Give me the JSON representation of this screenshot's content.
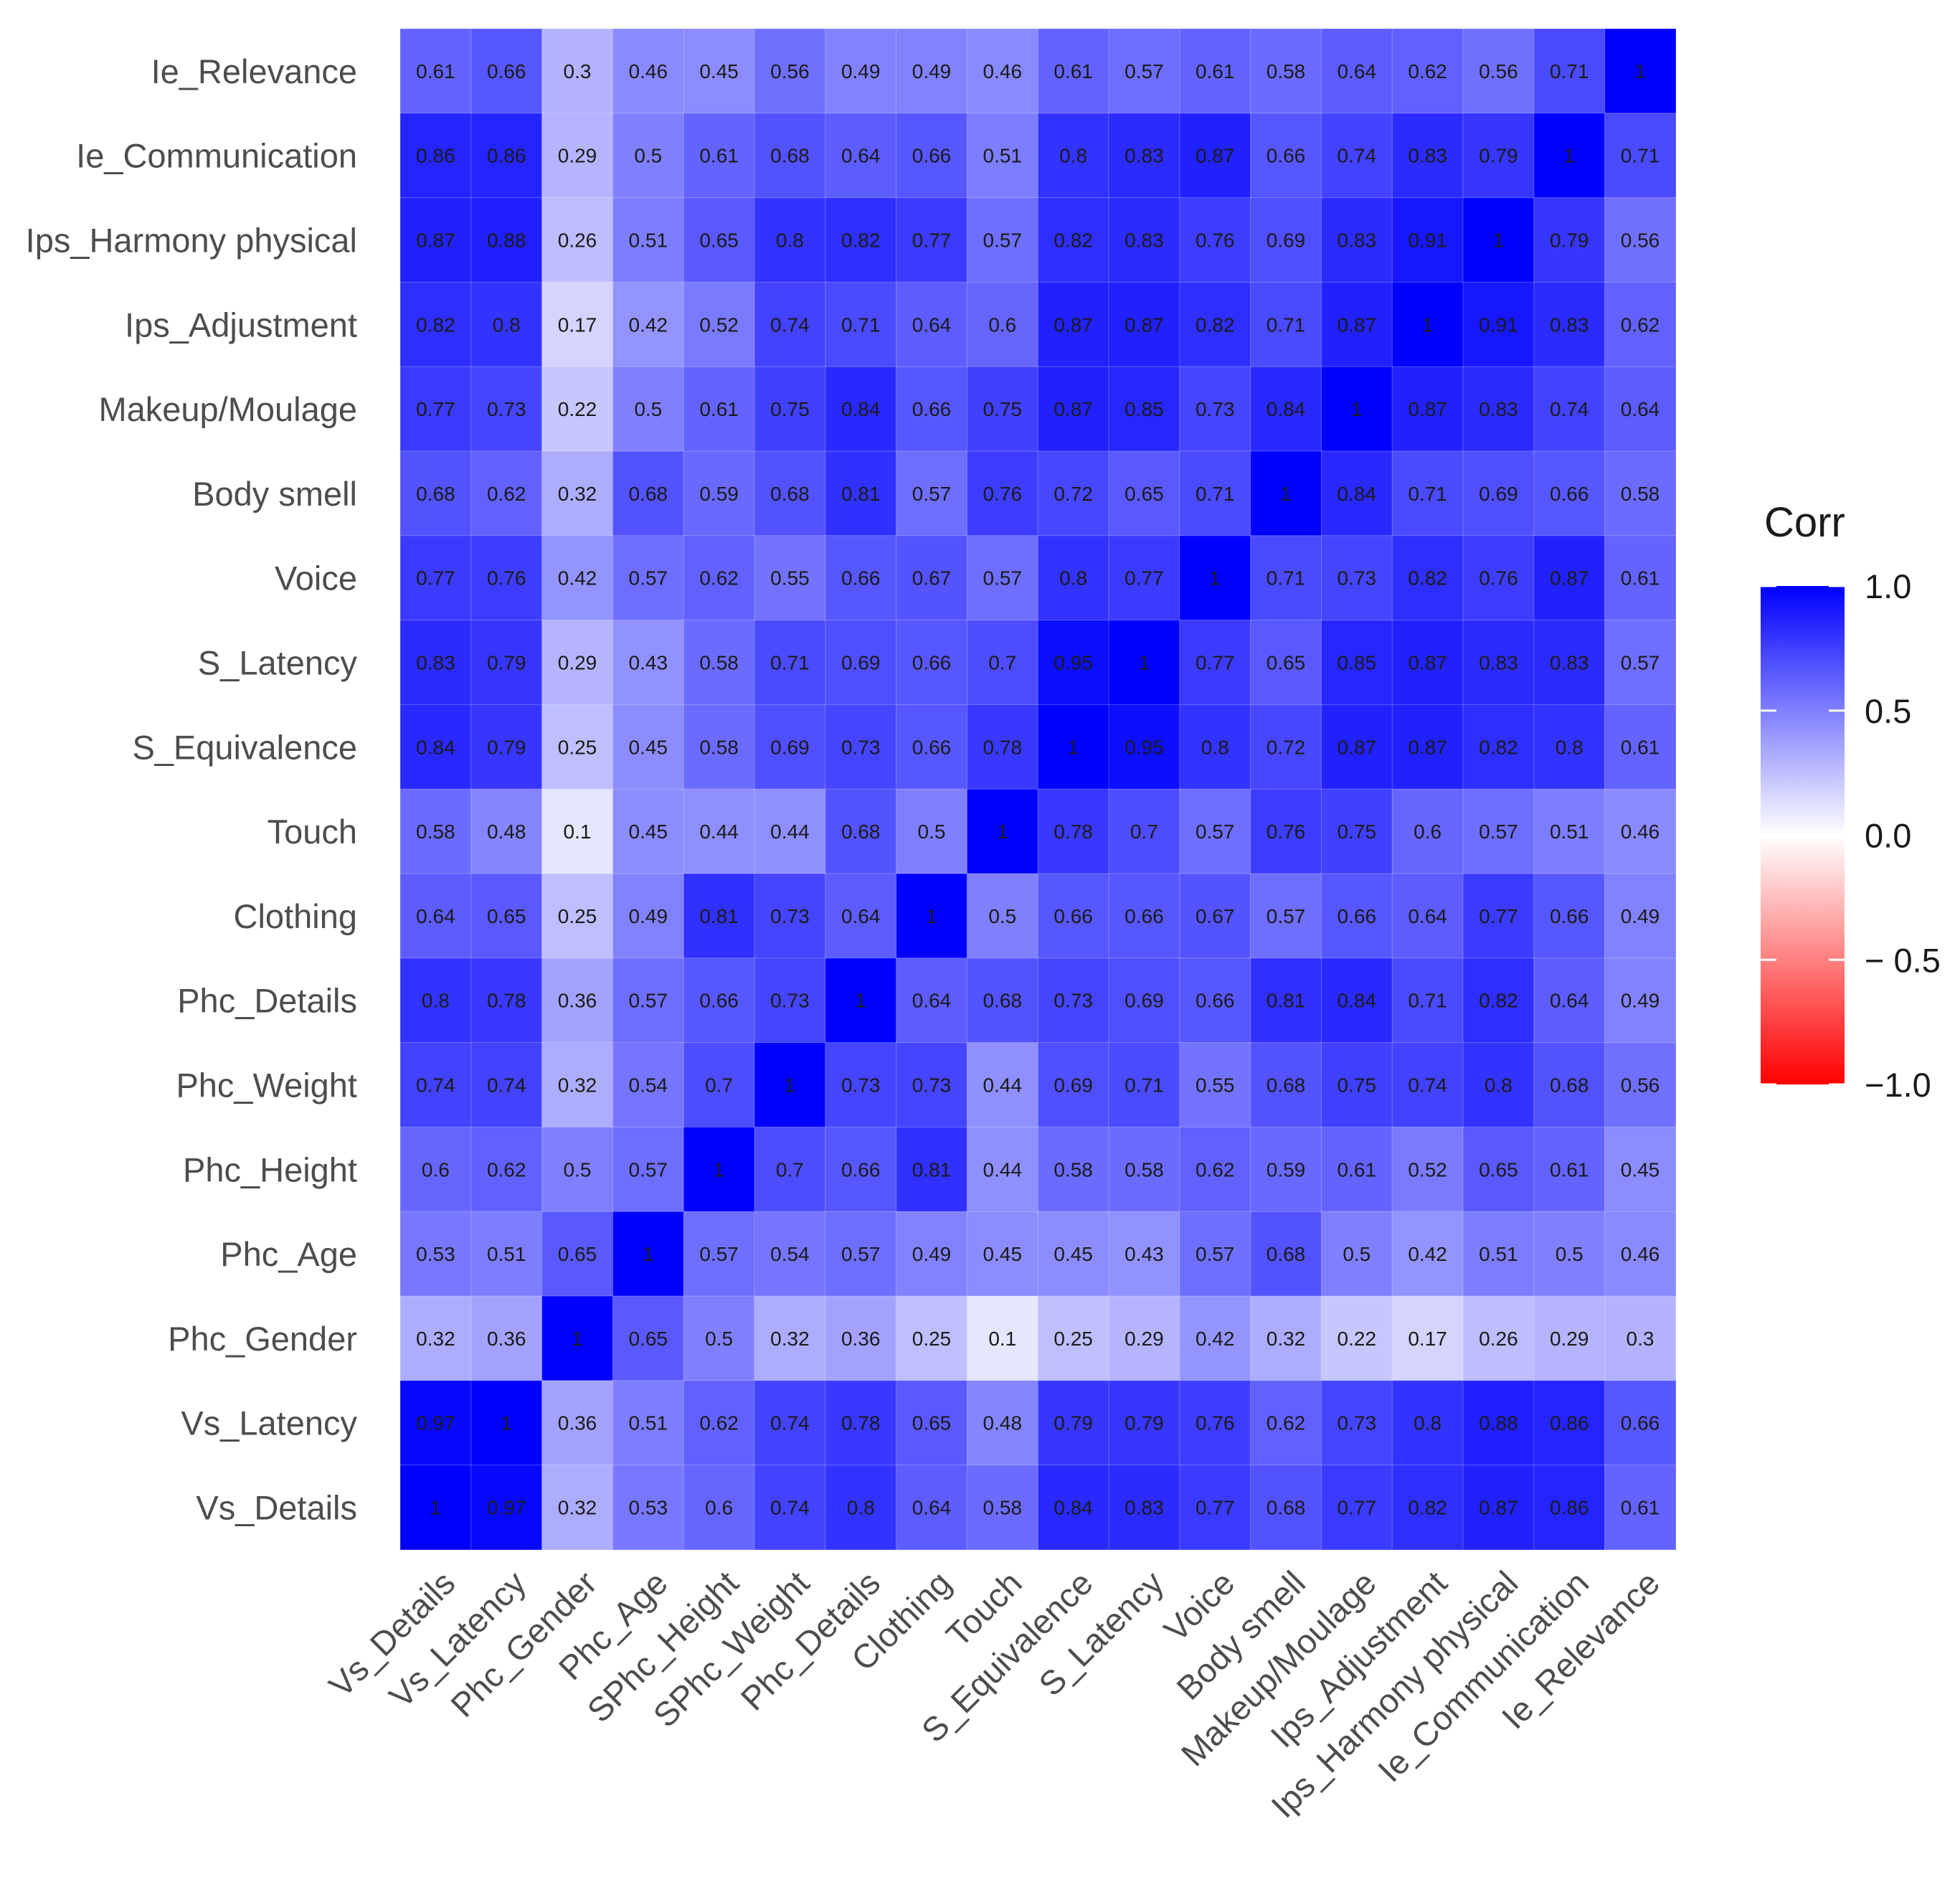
{
  "chart_data": {
    "type": "heatmap",
    "title": "",
    "xlabel": "",
    "ylabel": "",
    "x_labels": [
      "Vs_Details",
      "Vs_Latency",
      "Phc_Gender",
      "Phc_Age",
      "SPhc_Height",
      "SPhc_Weight",
      "Phc_Details",
      "Clothing",
      "Touch",
      "S_Equivalence",
      "S_Latency",
      "Voice",
      "Body smell",
      "Makeup/Moulage",
      "Ips_Adjustment",
      "Ips_Harmony physical",
      "Ie_Communication",
      "Ie_Relevance"
    ],
    "y_labels_top_to_bottom": [
      "Ie_Relevance",
      "Ie_Communication",
      "Ips_Harmony physical",
      "Ips_Adjustment",
      "Makeup/Moulage",
      "Body smell",
      "Voice",
      "S_Latency",
      "S_Equivalence",
      "Touch",
      "Clothing",
      "Phc_Details",
      "Phc_Weight",
      "Phc_Height",
      "Phc_Age",
      "Phc_Gender",
      "Vs_Latency",
      "Vs_Details"
    ],
    "values": [
      [
        "0.61",
        "0.66",
        "0.3",
        "0.46",
        "0.45",
        "0.56",
        "0.49",
        "0.49",
        "0.46",
        "0.61",
        "0.57",
        "0.61",
        "0.58",
        "0.64",
        "0.62",
        "0.56",
        "0.71",
        "1"
      ],
      [
        "0.86",
        "0.86",
        "0.29",
        "0.5",
        "0.61",
        "0.68",
        "0.64",
        "0.66",
        "0.51",
        "0.8",
        "0.83",
        "0.87",
        "0.66",
        "0.74",
        "0.83",
        "0.79",
        "1",
        "0.71"
      ],
      [
        "0.87",
        "0.88",
        "0.26",
        "0.51",
        "0.65",
        "0.8",
        "0.82",
        "0.77",
        "0.57",
        "0.82",
        "0.83",
        "0.76",
        "0.69",
        "0.83",
        "0.91",
        "1",
        "0.79",
        "0.56"
      ],
      [
        "0.82",
        "0.8",
        "0.17",
        "0.42",
        "0.52",
        "0.74",
        "0.71",
        "0.64",
        "0.6",
        "0.87",
        "0.87",
        "0.82",
        "0.71",
        "0.87",
        "1",
        "0.91",
        "0.83",
        "0.62"
      ],
      [
        "0.77",
        "0.73",
        "0.22",
        "0.5",
        "0.61",
        "0.75",
        "0.84",
        "0.66",
        "0.75",
        "0.87",
        "0.85",
        "0.73",
        "0.84",
        "1",
        "0.87",
        "0.83",
        "0.74",
        "0.64"
      ],
      [
        "0.68",
        "0.62",
        "0.32",
        "0.68",
        "0.59",
        "0.68",
        "0.81",
        "0.57",
        "0.76",
        "0.72",
        "0.65",
        "0.71",
        "1",
        "0.84",
        "0.71",
        "0.69",
        "0.66",
        "0.58"
      ],
      [
        "0.77",
        "0.76",
        "0.42",
        "0.57",
        "0.62",
        "0.55",
        "0.66",
        "0.67",
        "0.57",
        "0.8",
        "0.77",
        "1",
        "0.71",
        "0.73",
        "0.82",
        "0.76",
        "0.87",
        "0.61"
      ],
      [
        "0.83",
        "0.79",
        "0.29",
        "0.43",
        "0.58",
        "0.71",
        "0.69",
        "0.66",
        "0.7",
        "0.95",
        "1",
        "0.77",
        "0.65",
        "0.85",
        "0.87",
        "0.83",
        "0.83",
        "0.57"
      ],
      [
        "0.84",
        "0.79",
        "0.25",
        "0.45",
        "0.58",
        "0.69",
        "0.73",
        "0.66",
        "0.78",
        "1",
        "0.95",
        "0.8",
        "0.72",
        "0.87",
        "0.87",
        "0.82",
        "0.8",
        "0.61"
      ],
      [
        "0.58",
        "0.48",
        "0.1",
        "0.45",
        "0.44",
        "0.44",
        "0.68",
        "0.5",
        "1",
        "0.78",
        "0.7",
        "0.57",
        "0.76",
        "0.75",
        "0.6",
        "0.57",
        "0.51",
        "0.46"
      ],
      [
        "0.64",
        "0.65",
        "0.25",
        "0.49",
        "0.81",
        "0.73",
        "0.64",
        "1",
        "0.5",
        "0.66",
        "0.66",
        "0.67",
        "0.57",
        "0.66",
        "0.64",
        "0.77",
        "0.66",
        "0.49"
      ],
      [
        "0.8",
        "0.78",
        "0.36",
        "0.57",
        "0.66",
        "0.73",
        "1",
        "0.64",
        "0.68",
        "0.73",
        "0.69",
        "0.66",
        "0.81",
        "0.84",
        "0.71",
        "0.82",
        "0.64",
        "0.49"
      ],
      [
        "0.74",
        "0.74",
        "0.32",
        "0.54",
        "0.7",
        "1",
        "0.73",
        "0.73",
        "0.44",
        "0.69",
        "0.71",
        "0.55",
        "0.68",
        "0.75",
        "0.74",
        "0.8",
        "0.68",
        "0.56"
      ],
      [
        "0.6",
        "0.62",
        "0.5",
        "0.57",
        "1",
        "0.7",
        "0.66",
        "0.81",
        "0.44",
        "0.58",
        "0.58",
        "0.62",
        "0.59",
        "0.61",
        "0.52",
        "0.65",
        "0.61",
        "0.45"
      ],
      [
        "0.53",
        "0.51",
        "0.65",
        "1",
        "0.57",
        "0.54",
        "0.57",
        "0.49",
        "0.45",
        "0.45",
        "0.43",
        "0.57",
        "0.68",
        "0.5",
        "0.42",
        "0.51",
        "0.5",
        "0.46"
      ],
      [
        "0.32",
        "0.36",
        "1",
        "0.65",
        "0.5",
        "0.32",
        "0.36",
        "0.25",
        "0.1",
        "0.25",
        "0.29",
        "0.42",
        "0.32",
        "0.22",
        "0.17",
        "0.26",
        "0.29",
        "0.3"
      ],
      [
        "0.97",
        "1",
        "0.36",
        "0.51",
        "0.62",
        "0.74",
        "0.78",
        "0.65",
        "0.48",
        "0.79",
        "0.79",
        "0.76",
        "0.62",
        "0.73",
        "0.8",
        "0.88",
        "0.86",
        "0.66"
      ],
      [
        "1",
        "0.97",
        "0.32",
        "0.53",
        "0.6",
        "0.74",
        "0.8",
        "0.64",
        "0.58",
        "0.84",
        "0.83",
        "0.77",
        "0.68",
        "0.77",
        "0.82",
        "0.87",
        "0.86",
        "0.61"
      ]
    ],
    "color_scale": {
      "low": "#ff0000",
      "mid": "#ffffff",
      "high": "#0000ff",
      "limits": [
        -1.0,
        1.0
      ]
    },
    "legend": {
      "title": "Corr",
      "ticks": [
        "1.0",
        "0.5",
        "0.0",
        "− 0.5",
        "−1.0"
      ],
      "tick_values": [
        1.0,
        0.5,
        0.0,
        -0.5,
        -1.0
      ],
      "position": "right"
    }
  }
}
